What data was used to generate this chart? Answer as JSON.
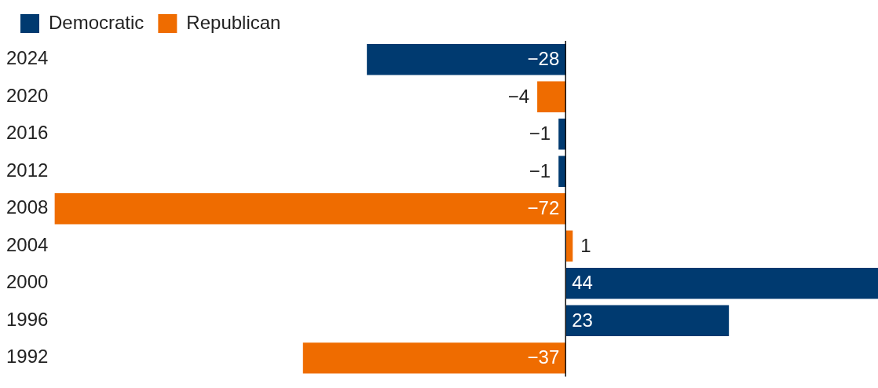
{
  "chart_data": {
    "type": "bar",
    "orientation": "horizontal",
    "stacked": true,
    "legend": "top left",
    "data_labels": true,
    "tick_labels": "y",
    "categories": [
      "2024",
      "2020",
      "2016",
      "2012",
      "2008",
      "2004",
      "2000",
      "1996",
      "1992"
    ],
    "xlim": [
      -72,
      44
    ],
    "series": [
      {
        "name": "Democratic",
        "color": "#003a70",
        "values": [
          -28,
          null,
          -1,
          -1,
          null,
          null,
          44,
          23,
          null
        ]
      },
      {
        "name": "Republican",
        "color": "#ef6c00",
        "values": [
          null,
          -4,
          null,
          null,
          -72,
          1,
          null,
          null,
          -37
        ]
      }
    ]
  }
}
